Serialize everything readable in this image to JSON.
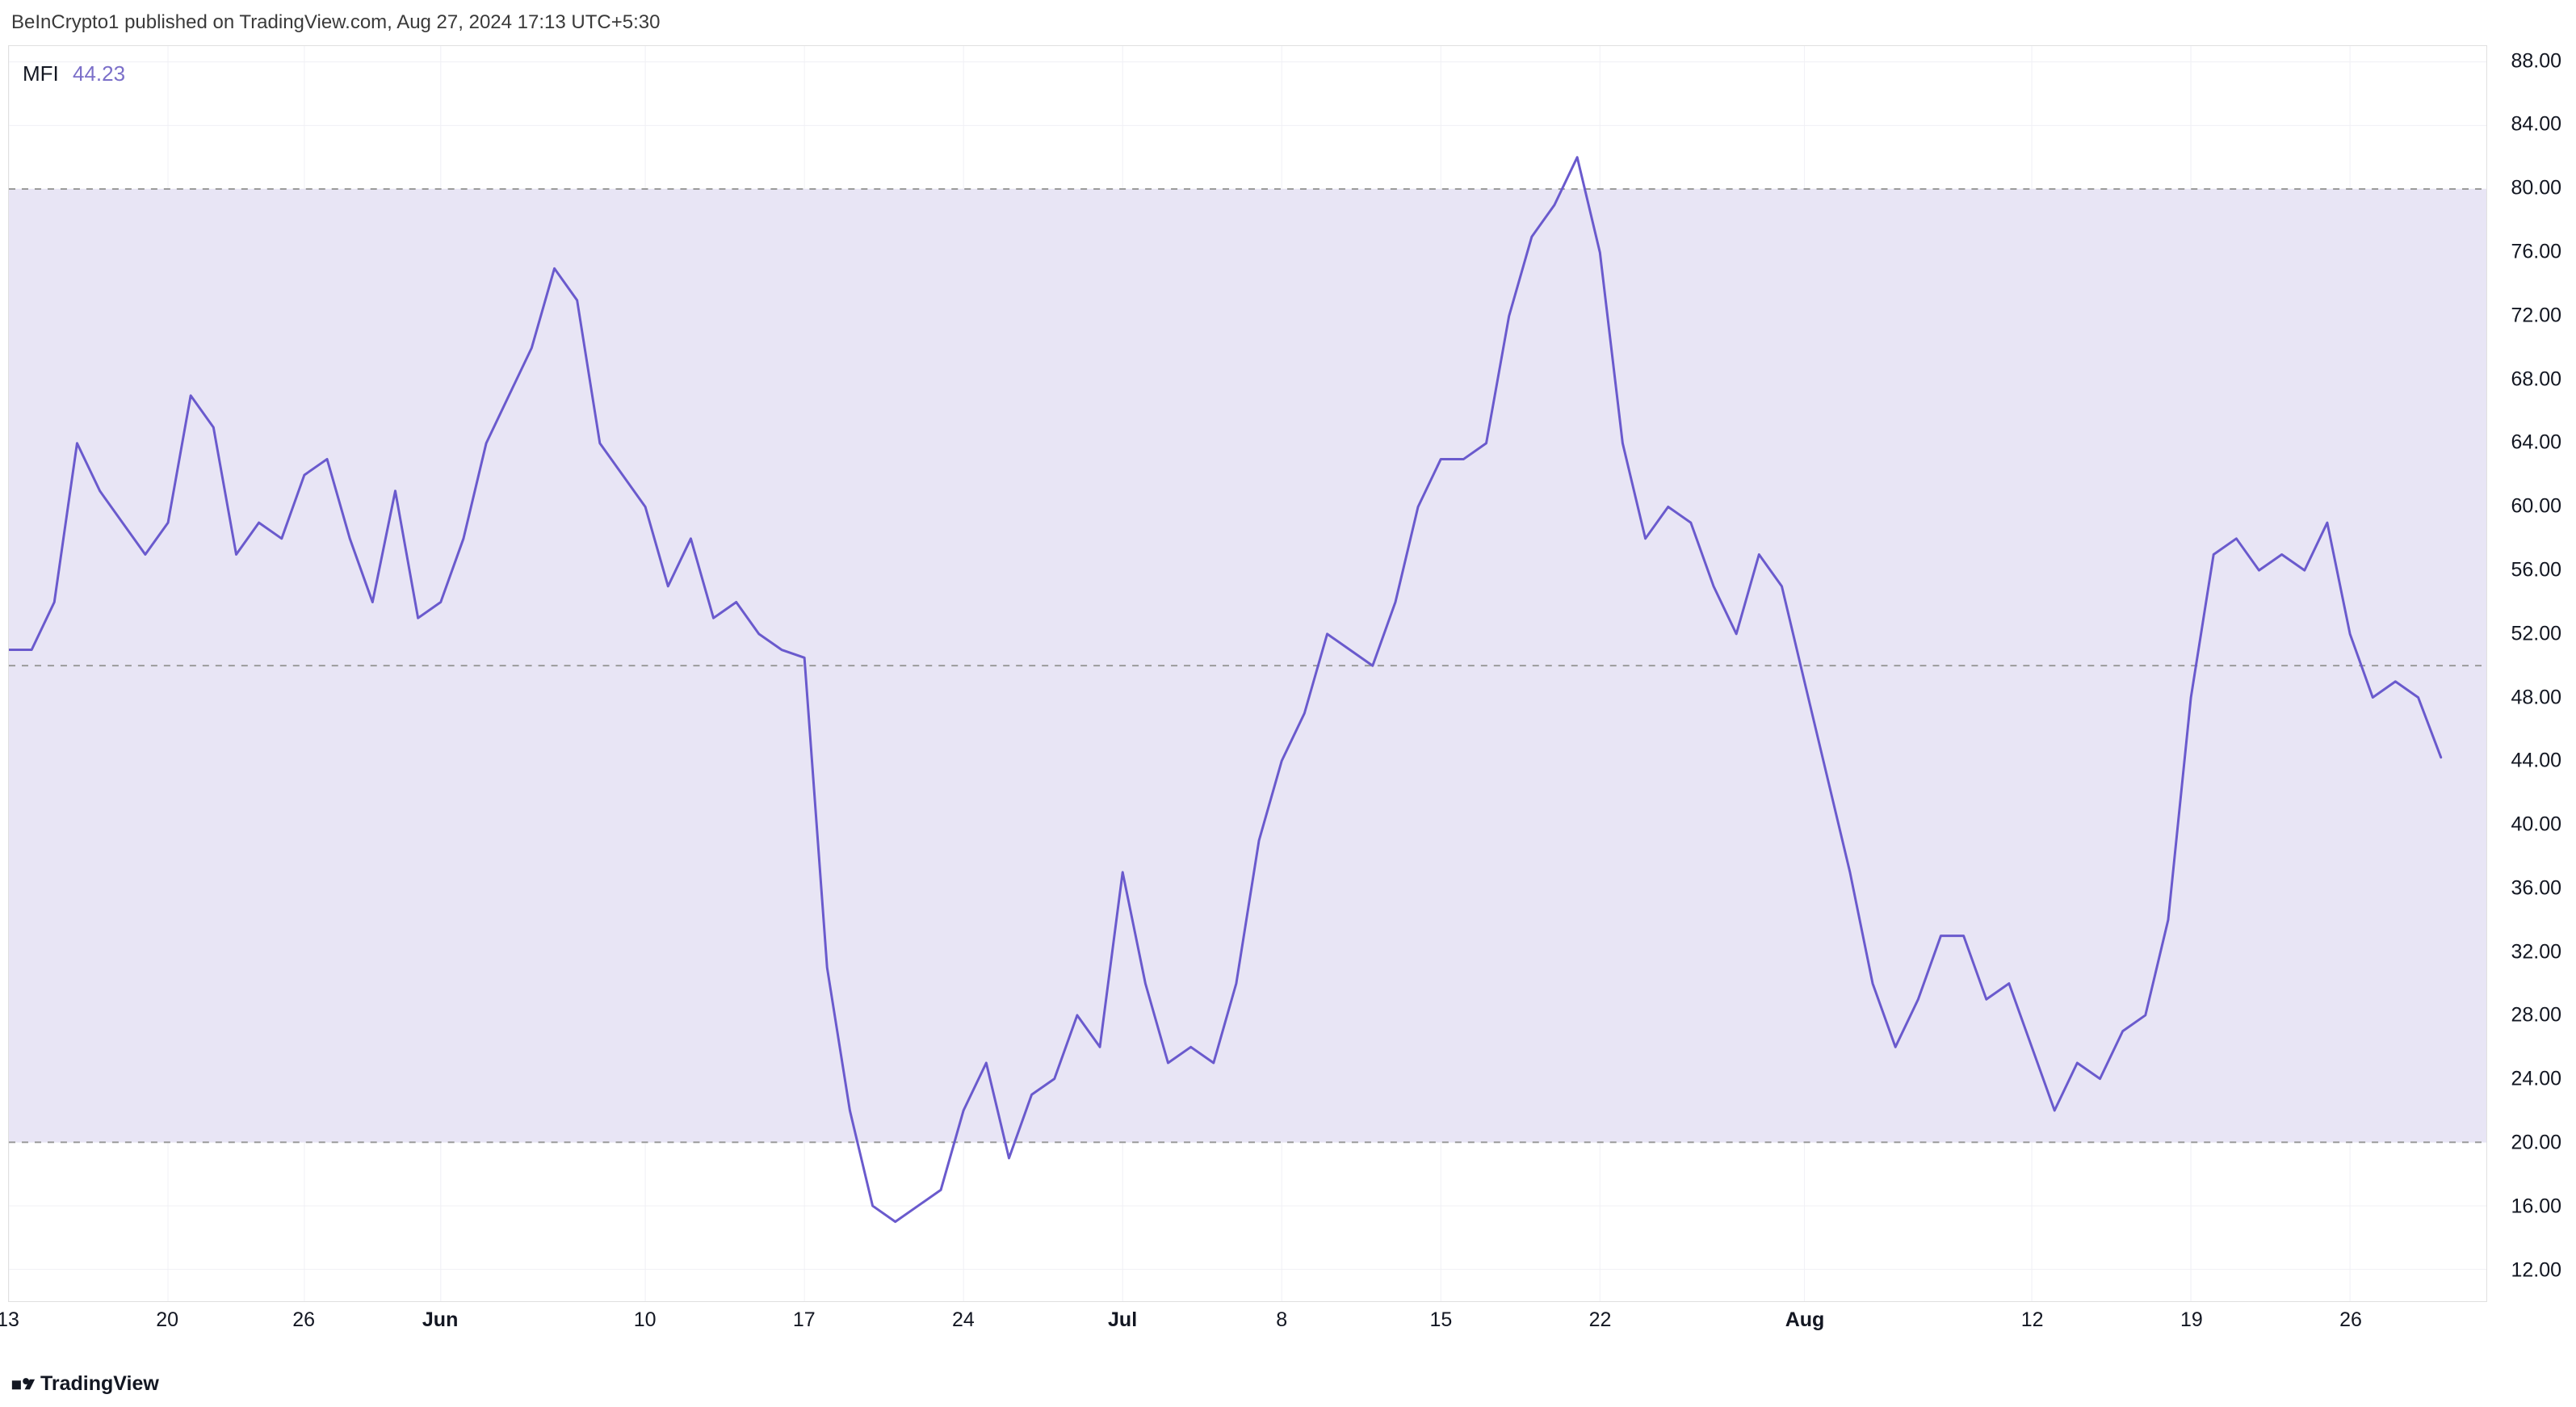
{
  "attribution": "BeInCrypto1 published on TradingView.com, Aug 27, 2024 17:13 UTC+5:30",
  "legend": {
    "name": "MFI",
    "value": "44.23",
    "value_color": "#7b6fc9",
    "name_color": "#131722"
  },
  "watermark": "TradingView",
  "chart": {
    "type": "line",
    "line_color": "#6a5acd",
    "line_width": 3,
    "background_color": "#ffffff",
    "band_fill": "#e8e5f5",
    "grid_color": "#f0f0f5",
    "dash_color": "#9b9b9b",
    "dash_pattern": "8 8",
    "ylim": [
      10,
      89
    ],
    "bands": {
      "upper": 80,
      "middle": 50,
      "lower": 20
    },
    "y_ticks": [
      {
        "v": 88,
        "label": "88.00"
      },
      {
        "v": 84,
        "label": "84.00"
      },
      {
        "v": 80,
        "label": "80.00"
      },
      {
        "v": 76,
        "label": "76.00"
      },
      {
        "v": 72,
        "label": "72.00"
      },
      {
        "v": 68,
        "label": "68.00"
      },
      {
        "v": 64,
        "label": "64.00"
      },
      {
        "v": 60,
        "label": "60.00"
      },
      {
        "v": 56,
        "label": "56.00"
      },
      {
        "v": 52,
        "label": "52.00"
      },
      {
        "v": 48,
        "label": "48.00"
      },
      {
        "v": 44,
        "label": "44.00"
      },
      {
        "v": 40,
        "label": "40.00"
      },
      {
        "v": 36,
        "label": "36.00"
      },
      {
        "v": 32,
        "label": "32.00"
      },
      {
        "v": 28,
        "label": "28.00"
      },
      {
        "v": 24,
        "label": "24.00"
      },
      {
        "v": 20,
        "label": "20.00"
      },
      {
        "v": 16,
        "label": "16.00"
      },
      {
        "v": 12,
        "label": "12.00"
      }
    ],
    "y_tick_fontsize": 25,
    "x_range": [
      0,
      109
    ],
    "x_ticks": [
      {
        "i": 0,
        "label": "13",
        "bold": false
      },
      {
        "i": 7,
        "label": "20",
        "bold": false
      },
      {
        "i": 13,
        "label": "26",
        "bold": false
      },
      {
        "i": 19,
        "label": "Jun",
        "bold": true
      },
      {
        "i": 28,
        "label": "10",
        "bold": false
      },
      {
        "i": 35,
        "label": "17",
        "bold": false
      },
      {
        "i": 42,
        "label": "24",
        "bold": false
      },
      {
        "i": 49,
        "label": "Jul",
        "bold": true
      },
      {
        "i": 56,
        "label": "8",
        "bold": false
      },
      {
        "i": 63,
        "label": "15",
        "bold": false
      },
      {
        "i": 70,
        "label": "22",
        "bold": false
      },
      {
        "i": 79,
        "label": "Aug",
        "bold": true
      },
      {
        "i": 89,
        "label": "12",
        "bold": false
      },
      {
        "i": 96,
        "label": "19",
        "bold": false
      },
      {
        "i": 103,
        "label": "26",
        "bold": false
      }
    ],
    "x_tick_fontsize": 25,
    "series": [
      {
        "i": 0,
        "v": 51
      },
      {
        "i": 1,
        "v": 51
      },
      {
        "i": 2,
        "v": 54
      },
      {
        "i": 3,
        "v": 64
      },
      {
        "i": 4,
        "v": 61
      },
      {
        "i": 5,
        "v": 59
      },
      {
        "i": 6,
        "v": 57
      },
      {
        "i": 7,
        "v": 59
      },
      {
        "i": 8,
        "v": 67
      },
      {
        "i": 9,
        "v": 65
      },
      {
        "i": 10,
        "v": 57
      },
      {
        "i": 11,
        "v": 59
      },
      {
        "i": 12,
        "v": 58
      },
      {
        "i": 13,
        "v": 62
      },
      {
        "i": 14,
        "v": 63
      },
      {
        "i": 15,
        "v": 58
      },
      {
        "i": 16,
        "v": 54
      },
      {
        "i": 17,
        "v": 61
      },
      {
        "i": 18,
        "v": 53
      },
      {
        "i": 19,
        "v": 54
      },
      {
        "i": 20,
        "v": 58
      },
      {
        "i": 21,
        "v": 64
      },
      {
        "i": 22,
        "v": 67
      },
      {
        "i": 23,
        "v": 70
      },
      {
        "i": 24,
        "v": 75
      },
      {
        "i": 25,
        "v": 73
      },
      {
        "i": 26,
        "v": 64
      },
      {
        "i": 27,
        "v": 62
      },
      {
        "i": 28,
        "v": 60
      },
      {
        "i": 29,
        "v": 55
      },
      {
        "i": 30,
        "v": 58
      },
      {
        "i": 31,
        "v": 53
      },
      {
        "i": 32,
        "v": 54
      },
      {
        "i": 33,
        "v": 52
      },
      {
        "i": 34,
        "v": 51
      },
      {
        "i": 35,
        "v": 50.5
      },
      {
        "i": 36,
        "v": 31
      },
      {
        "i": 37,
        "v": 22
      },
      {
        "i": 38,
        "v": 16
      },
      {
        "i": 39,
        "v": 15
      },
      {
        "i": 40,
        "v": 16
      },
      {
        "i": 41,
        "v": 17
      },
      {
        "i": 42,
        "v": 22
      },
      {
        "i": 43,
        "v": 25
      },
      {
        "i": 44,
        "v": 19
      },
      {
        "i": 45,
        "v": 23
      },
      {
        "i": 46,
        "v": 24
      },
      {
        "i": 47,
        "v": 28
      },
      {
        "i": 48,
        "v": 26
      },
      {
        "i": 49,
        "v": 37
      },
      {
        "i": 50,
        "v": 30
      },
      {
        "i": 51,
        "v": 25
      },
      {
        "i": 52,
        "v": 26
      },
      {
        "i": 53,
        "v": 25
      },
      {
        "i": 54,
        "v": 30
      },
      {
        "i": 55,
        "v": 39
      },
      {
        "i": 56,
        "v": 44
      },
      {
        "i": 57,
        "v": 47
      },
      {
        "i": 58,
        "v": 52
      },
      {
        "i": 59,
        "v": 51
      },
      {
        "i": 60,
        "v": 50
      },
      {
        "i": 61,
        "v": 54
      },
      {
        "i": 62,
        "v": 60
      },
      {
        "i": 63,
        "v": 63
      },
      {
        "i": 64,
        "v": 63
      },
      {
        "i": 65,
        "v": 64
      },
      {
        "i": 66,
        "v": 72
      },
      {
        "i": 67,
        "v": 77
      },
      {
        "i": 68,
        "v": 79
      },
      {
        "i": 69,
        "v": 82
      },
      {
        "i": 70,
        "v": 76
      },
      {
        "i": 71,
        "v": 64
      },
      {
        "i": 72,
        "v": 58
      },
      {
        "i": 73,
        "v": 60
      },
      {
        "i": 74,
        "v": 59
      },
      {
        "i": 75,
        "v": 55
      },
      {
        "i": 76,
        "v": 52
      },
      {
        "i": 77,
        "v": 57
      },
      {
        "i": 78,
        "v": 55
      },
      {
        "i": 79,
        "v": 49
      },
      {
        "i": 80,
        "v": 43
      },
      {
        "i": 81,
        "v": 37
      },
      {
        "i": 82,
        "v": 30
      },
      {
        "i": 83,
        "v": 26
      },
      {
        "i": 84,
        "v": 29
      },
      {
        "i": 85,
        "v": 33
      },
      {
        "i": 86,
        "v": 33
      },
      {
        "i": 87,
        "v": 29
      },
      {
        "i": 88,
        "v": 30
      },
      {
        "i": 89,
        "v": 26
      },
      {
        "i": 90,
        "v": 22
      },
      {
        "i": 91,
        "v": 25
      },
      {
        "i": 92,
        "v": 24
      },
      {
        "i": 93,
        "v": 27
      },
      {
        "i": 94,
        "v": 28
      },
      {
        "i": 95,
        "v": 34
      },
      {
        "i": 96,
        "v": 48
      },
      {
        "i": 97,
        "v": 57
      },
      {
        "i": 98,
        "v": 58
      },
      {
        "i": 99,
        "v": 56
      },
      {
        "i": 100,
        "v": 57
      },
      {
        "i": 101,
        "v": 56
      },
      {
        "i": 102,
        "v": 59
      },
      {
        "i": 103,
        "v": 52
      },
      {
        "i": 104,
        "v": 48
      },
      {
        "i": 105,
        "v": 49
      },
      {
        "i": 106,
        "v": 48
      },
      {
        "i": 107,
        "v": 44.23
      }
    ]
  }
}
